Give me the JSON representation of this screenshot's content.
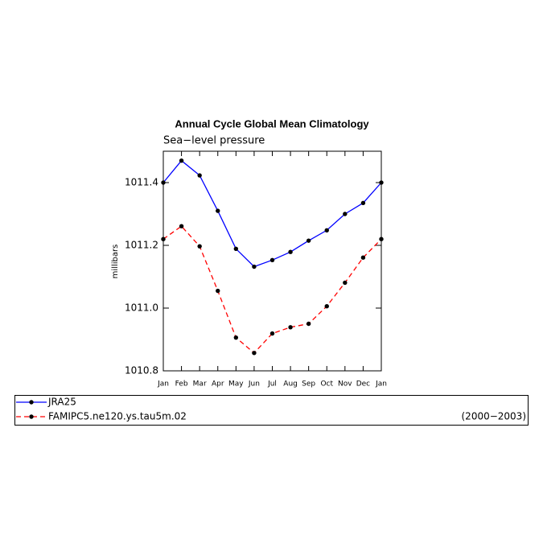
{
  "chart_data": {
    "type": "line",
    "title": "Annual Cycle Global Mean Climatology",
    "subtitle": "Sea−level pressure",
    "y_label": "millibars",
    "annotation": "(2000−2003)",
    "categories": [
      "Jan",
      "Feb",
      "Mar",
      "Apr",
      "May",
      "Jun",
      "Jul",
      "Aug",
      "Sep",
      "Oct",
      "Nov",
      "Dec",
      "Jan"
    ],
    "series": [
      {
        "name": "JRA25",
        "color": "#0000ff",
        "dash": "solid",
        "values": [
          1011.4,
          1011.47,
          1011.423,
          1011.31,
          1011.189,
          1011.132,
          1011.153,
          1011.179,
          1011.215,
          1011.248,
          1011.3,
          1011.335,
          1011.4
        ]
      },
      {
        "name": "FAMIPC5.ne120.ys.tau5m.02",
        "color": "#ff0000",
        "dash": "dashed",
        "values": [
          1011.22,
          1011.261,
          1011.197,
          1011.055,
          1010.906,
          1010.857,
          1010.919,
          1010.939,
          1010.95,
          1011.006,
          1011.081,
          1011.161,
          1011.22
        ]
      }
    ],
    "ylim": [
      1010.8,
      1011.5
    ],
    "yticks": [
      1010.8,
      {
        "value": 1011.0,
        "label": "1011.0"
      },
      1011.2,
      1011.4
    ]
  }
}
